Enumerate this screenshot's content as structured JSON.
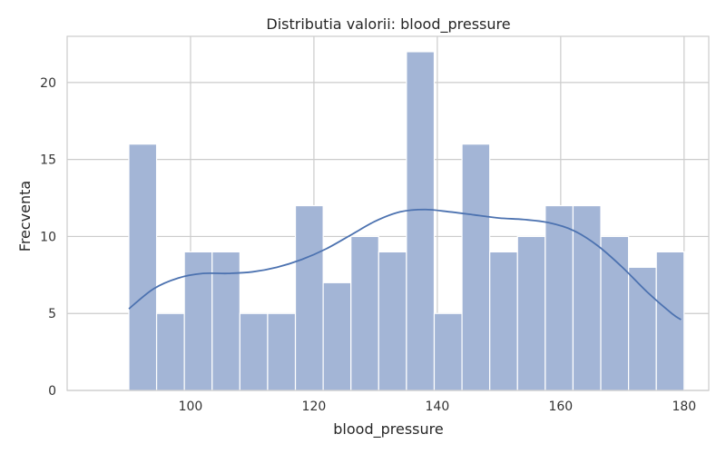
{
  "chart_data": {
    "type": "bar",
    "title": "Distributia valorii: blood_pressure",
    "xlabel": "blood_pressure",
    "ylabel": "Frecventa",
    "xlim": [
      80,
      184
    ],
    "ylim": [
      0,
      23
    ],
    "xticks": [
      100,
      120,
      140,
      160,
      180
    ],
    "yticks": [
      0,
      5,
      10,
      15,
      20
    ],
    "grid": true,
    "bin_start": 90,
    "bin_width": 4.5,
    "values": [
      16,
      5,
      9,
      9,
      5,
      5,
      12,
      7,
      10,
      9,
      22,
      5,
      16,
      9,
      10,
      12,
      12,
      10,
      8,
      9
    ],
    "kde": {
      "x": [
        90,
        94,
        98,
        102,
        106,
        110,
        114,
        118,
        122,
        126,
        130,
        134,
        138,
        142,
        146,
        150,
        154,
        158,
        162,
        166,
        170,
        174,
        178,
        179.5
      ],
      "y": [
        5.3,
        6.6,
        7.3,
        7.6,
        7.6,
        7.7,
        8.0,
        8.5,
        9.2,
        10.1,
        11.0,
        11.6,
        11.75,
        11.6,
        11.4,
        11.2,
        11.1,
        10.9,
        10.4,
        9.4,
        8.0,
        6.4,
        5.0,
        4.6
      ]
    },
    "colors": {
      "bar_fill": "#a3b5d6",
      "bar_edge": "#ffffff",
      "kde_line": "#4c72b0",
      "grid": "#cccccc",
      "frame": "#cccccc"
    }
  }
}
